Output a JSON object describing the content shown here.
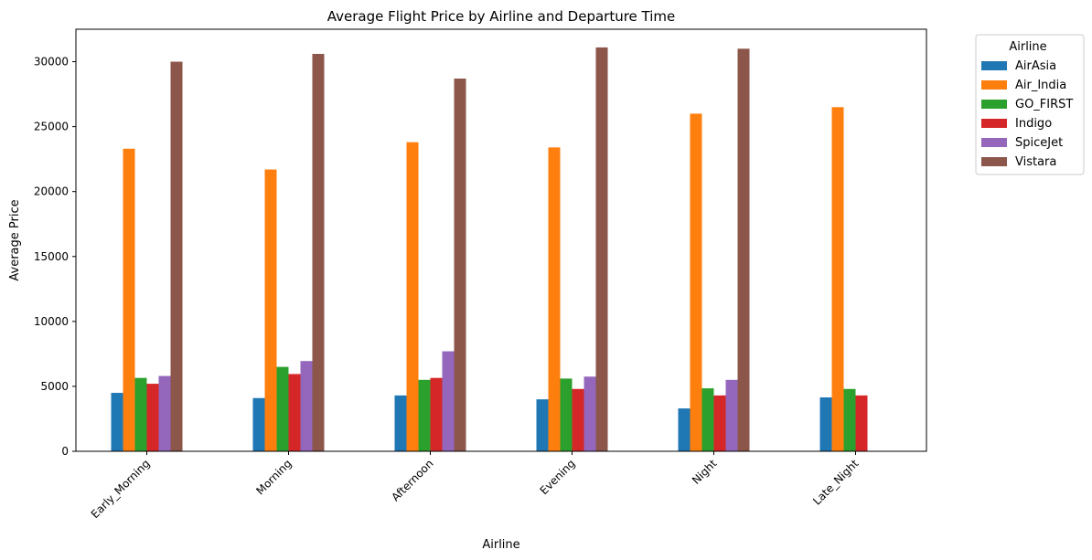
{
  "chart_data": {
    "type": "bar",
    "title": "Average Flight Price by Airline and Departure Time",
    "xlabel": "Airline",
    "ylabel": "Average Price",
    "ylim": [
      0,
      32500
    ],
    "yticks": [
      0,
      5000,
      10000,
      15000,
      20000,
      25000,
      30000
    ],
    "grid": false,
    "legend": {
      "title": "Airline",
      "placement": "outside-top-right"
    },
    "categories": [
      "Early_Morning",
      "Morning",
      "Afternoon",
      "Evening",
      "Night",
      "Late_Night"
    ],
    "series": [
      {
        "name": "AirAsia",
        "color": "#1f77b4",
        "values": [
          4500,
          4100,
          4300,
          4000,
          3300,
          4150
        ]
      },
      {
        "name": "Air_India",
        "color": "#ff7f0e",
        "values": [
          23300,
          21700,
          23800,
          23400,
          26000,
          26500
        ]
      },
      {
        "name": "GO_FIRST",
        "color": "#2ca02c",
        "values": [
          5650,
          6500,
          5500,
          5600,
          4850,
          4800
        ]
      },
      {
        "name": "Indigo",
        "color": "#d62728",
        "values": [
          5200,
          5950,
          5650,
          4800,
          4300,
          4300
        ]
      },
      {
        "name": "SpiceJet",
        "color": "#9467bd",
        "values": [
          5800,
          6950,
          7700,
          5750,
          5500,
          null
        ]
      },
      {
        "name": "Vistara",
        "color": "#8c564b",
        "values": [
          30000,
          30600,
          28700,
          31100,
          31000,
          null
        ]
      }
    ]
  }
}
